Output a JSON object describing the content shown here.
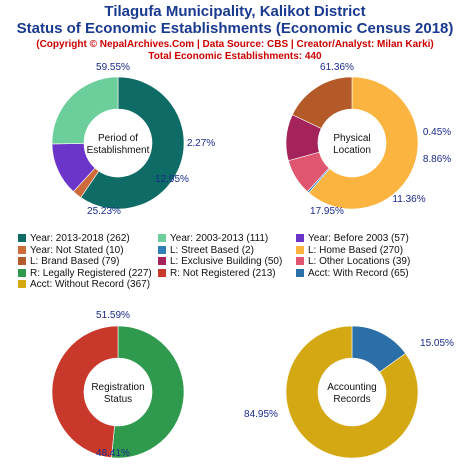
{
  "header": {
    "title_line1": "Tilagufa Municipality, Kalikot District",
    "title_line2": "Status of Economic Establishments (Economic Census 2018)",
    "credit": "(Copyright © NepalArchives.Com | Data Source: CBS | Creator/Analyst: Milan Karki)",
    "total": "Total Economic Establishments: 440"
  },
  "chart_data": [
    {
      "type": "pie",
      "center_label": [
        "Period of",
        "Establishment"
      ],
      "slices": [
        {
          "name": "Year: 2013-2018",
          "value": 262,
          "pct": "59.55%",
          "color": "#0e6b66"
        },
        {
          "name": "Year: Not Stated",
          "value": 10,
          "pct": "2.27%",
          "color": "#cd6a3a"
        },
        {
          "name": "Year: Before 2003",
          "value": 57,
          "pct": "12.95%",
          "color": "#6a35c8"
        },
        {
          "name": "Year: 2003-2013",
          "value": 111,
          "pct": "25.23%",
          "color": "#6ccf9b"
        }
      ]
    },
    {
      "type": "pie",
      "center_label": [
        "Physical",
        "Location"
      ],
      "slices": [
        {
          "name": "L: Home Based",
          "value": 270,
          "pct": "61.36%",
          "color": "#fbb440"
        },
        {
          "name": "L: Street Based",
          "value": 2,
          "pct": "0.45%",
          "color": "#2e7fb8"
        },
        {
          "name": "L: Other Locations",
          "value": 39,
          "pct": "8.86%",
          "color": "#e05670"
        },
        {
          "name": "L: Exclusive Building",
          "value": 50,
          "pct": "11.36%",
          "color": "#a3235a"
        },
        {
          "name": "L: Brand Based",
          "value": 79,
          "pct": "17.95%",
          "color": "#b45a28"
        }
      ]
    },
    {
      "type": "pie",
      "center_label": [
        "Registration",
        "Status"
      ],
      "slices": [
        {
          "name": "R: Legally Registered",
          "value": 227,
          "pct": "51.59%",
          "color": "#2f9a4e"
        },
        {
          "name": "R: Not Registered",
          "value": 213,
          "pct": "48.41%",
          "color": "#c8392b"
        }
      ]
    },
    {
      "type": "pie",
      "center_label": [
        "Accounting",
        "Records"
      ],
      "slices": [
        {
          "name": "Acct: With Record",
          "value": 65,
          "pct": "15.05%",
          "color": "#2a6fa8"
        },
        {
          "name": "Acct: Without Record",
          "value": 367,
          "pct": "84.95%",
          "color": "#d4a813"
        }
      ]
    }
  ],
  "legend": [
    {
      "label": "Year: 2013-2018 (262)",
      "color": "#0e6b66"
    },
    {
      "label": "Year: 2003-2013 (111)",
      "color": "#6ccf9b"
    },
    {
      "label": "Year: Before 2003 (57)",
      "color": "#6a35c8"
    },
    {
      "label": "Year: Not Stated (10)",
      "color": "#cd6a3a"
    },
    {
      "label": "L: Street Based (2)",
      "color": "#2e7fb8"
    },
    {
      "label": "L: Home Based (270)",
      "color": "#fbb440"
    },
    {
      "label": "L: Brand Based (79)",
      "color": "#b45a28"
    },
    {
      "label": "L: Exclusive Building (50)",
      "color": "#a3235a"
    },
    {
      "label": "L: Other Locations (39)",
      "color": "#e05670"
    },
    {
      "label": "R: Legally Registered (227)",
      "color": "#2f9a4e"
    },
    {
      "label": "R: Not Registered (213)",
      "color": "#c8392b"
    },
    {
      "label": "Acct: With Record (65)",
      "color": "#2a6fa8"
    },
    {
      "label": "Acct: Without Record (367)",
      "color": "#d4a813"
    }
  ]
}
